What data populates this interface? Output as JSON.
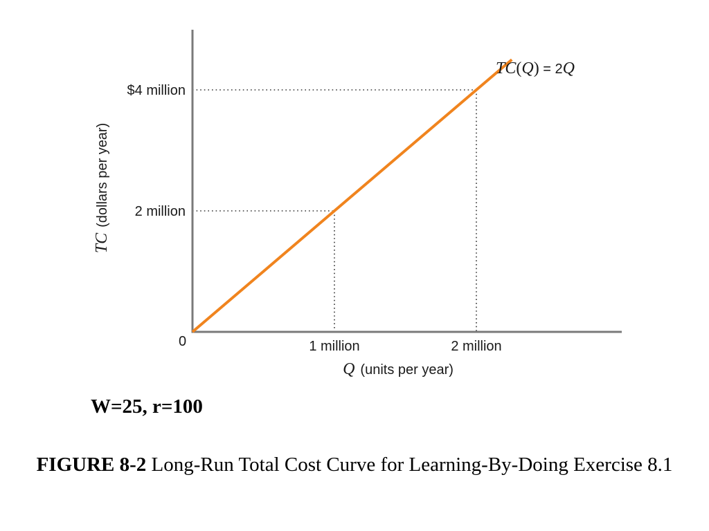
{
  "chart_data": {
    "type": "line",
    "xlabel_symbol": "Q",
    "xlabel_text": "(units per year)",
    "ylabel_symbol": "TC",
    "ylabel_text": "(dollars per year)",
    "origin_label": "0",
    "x_ticks": [
      {
        "value": 1000000,
        "label": "1 million"
      },
      {
        "value": 2000000,
        "label": "2 million"
      }
    ],
    "y_ticks": [
      {
        "value": 2000000,
        "label": "2 million"
      },
      {
        "value": 4000000,
        "label": "$4 million"
      }
    ],
    "xlim": [
      0,
      3200000
    ],
    "ylim": [
      0,
      5600000
    ],
    "series": [
      {
        "label_parts": {
          "fn": "TC",
          "open": "(",
          "arg": "Q",
          "close": ")",
          "eq": " = 2",
          "var": "Q"
        },
        "color": "#f0841e",
        "x": [
          0,
          2250000
        ],
        "y": [
          0,
          4500000
        ]
      }
    ],
    "guides": [
      {
        "x": 1000000,
        "y": 2000000
      },
      {
        "x": 2000000,
        "y": 4000000
      }
    ]
  },
  "note": "W=25, r=100",
  "caption": {
    "label": "FIGURE 8-2",
    "text": " Long-Run Total Cost Curve for Learning-By-Doing Exercise 8.1"
  }
}
